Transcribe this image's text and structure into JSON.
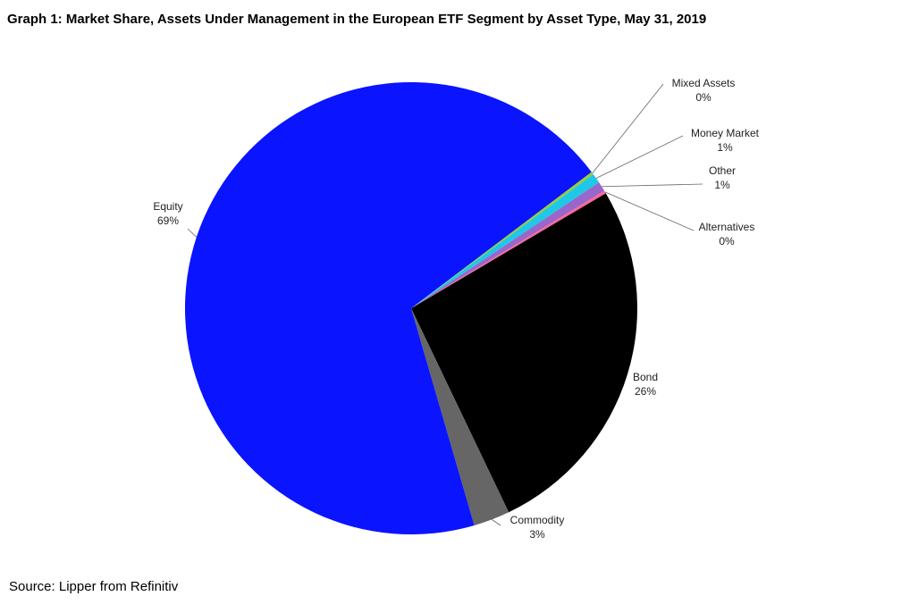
{
  "chart_data": {
    "type": "pie",
    "title": "Graph 1: Market Share, Assets Under Management in the European ETF Segment by Asset Type, May 31, 2019",
    "source": "Source: Lipper from Refinitiv",
    "categories": [
      "Bond",
      "Commodity",
      "Equity",
      "Mixed Assets",
      "Money Market",
      "Other",
      "Alternatives"
    ],
    "values": [
      26.4,
      2.6,
      69.2,
      0.2,
      0.7,
      0.7,
      0.2
    ],
    "value_labels": [
      "26%",
      "3%",
      "69%",
      "0%",
      "1%",
      "1%",
      "0%"
    ],
    "colors": [
      "#000000",
      "#666666",
      "#0a14ff",
      "#9acd32",
      "#1ec8e6",
      "#9966cc",
      "#ff6699"
    ]
  }
}
